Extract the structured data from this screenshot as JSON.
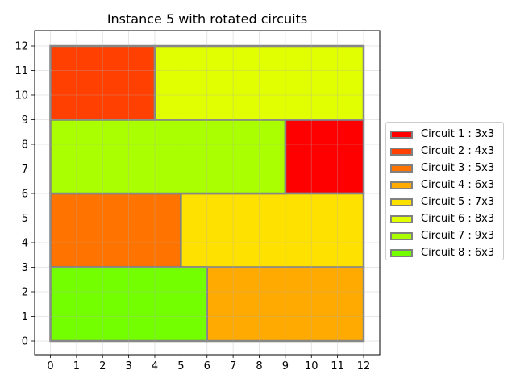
{
  "chart_data": {
    "type": "bar",
    "title": "Instance 5 with rotated circuits",
    "xlim": [
      0,
      12
    ],
    "ylim": [
      0,
      12
    ],
    "xticks": [
      0,
      1,
      2,
      3,
      4,
      5,
      6,
      7,
      8,
      9,
      10,
      11,
      12
    ],
    "yticks": [
      0,
      1,
      2,
      3,
      4,
      5,
      6,
      7,
      8,
      9,
      10,
      11,
      12
    ],
    "grid": true,
    "legend_position": "right",
    "edge_color": "#808080",
    "rectangles": [
      {
        "name": "Circuit 1 : 3x3",
        "x": 9,
        "y": 6,
        "w": 3,
        "h": 3,
        "color": "#ff0000"
      },
      {
        "name": "Circuit 2 : 4x3",
        "x": 0,
        "y": 9,
        "w": 4,
        "h": 3,
        "color": "#ff4000"
      },
      {
        "name": "Circuit 3 : 5x3",
        "x": 0,
        "y": 3,
        "w": 5,
        "h": 3,
        "color": "#ff7300"
      },
      {
        "name": "Circuit 4 : 6x3",
        "x": 6,
        "y": 0,
        "w": 6,
        "h": 3,
        "color": "#ffaa00"
      },
      {
        "name": "Circuit 5 : 7x3",
        "x": 5,
        "y": 3,
        "w": 7,
        "h": 3,
        "color": "#ffe100"
      },
      {
        "name": "Circuit 6 : 8x3",
        "x": 4,
        "y": 9,
        "w": 8,
        "h": 3,
        "color": "#e1ff00"
      },
      {
        "name": "Circuit 7 : 9x3",
        "x": 0,
        "y": 6,
        "w": 9,
        "h": 3,
        "color": "#aaff00"
      },
      {
        "name": "Circuit 8 : 6x3",
        "x": 0,
        "y": 0,
        "w": 6,
        "h": 3,
        "color": "#73ff00"
      }
    ]
  }
}
